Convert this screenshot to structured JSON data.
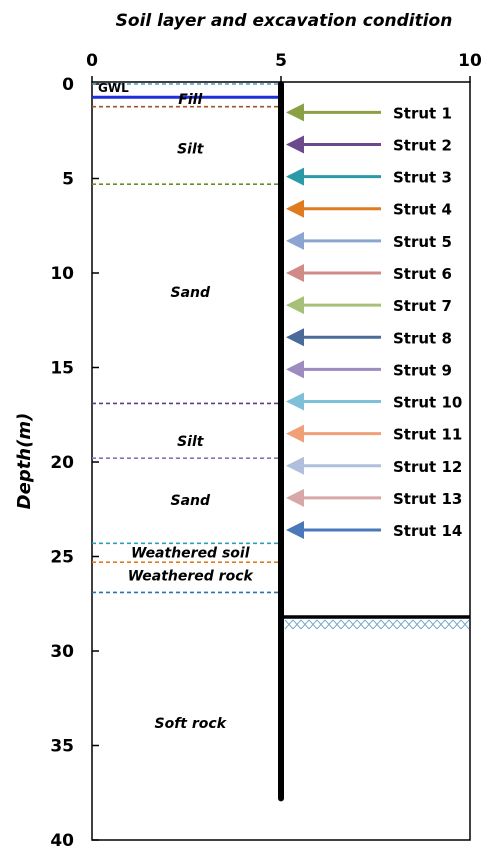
{
  "title": "Soil layer and excavation condition",
  "y_axis_label": "Depth(m)",
  "x_ticks": [
    "0",
    "5",
    "10"
  ],
  "y_ticks": [
    "0",
    "5",
    "10",
    "15",
    "20",
    "25",
    "30",
    "35",
    "40"
  ],
  "x_range": [
    0,
    10
  ],
  "depth_range": [
    0,
    40
  ],
  "gwl": {
    "label": "GWL",
    "depth": 0.7,
    "color": "#1f2fd6"
  },
  "wall": {
    "x": 5,
    "bottom_depth": 37.8
  },
  "excavation_bottom": {
    "depth": 28.2,
    "x_from": 5,
    "x_to": 10
  },
  "layers": [
    {
      "label": "Fill",
      "label_depth": 0.8,
      "label_x": 2.6
    },
    {
      "label": "Silt",
      "label_depth": 3.4,
      "label_x": 2.6
    },
    {
      "label": "Sand",
      "label_depth": 11.0,
      "label_x": 2.6
    },
    {
      "label": "Silt",
      "label_depth": 18.9,
      "label_x": 2.6
    },
    {
      "label": "Sand",
      "label_depth": 22.0,
      "label_x": 2.6
    },
    {
      "label": "Weathered soil",
      "label_depth": 24.8,
      "label_x": 2.6
    },
    {
      "label": "Weathered rock",
      "label_depth": 26.0,
      "label_x": 2.6
    },
    {
      "label": "Soft rock",
      "label_depth": 33.8,
      "label_x": 2.6
    }
  ],
  "boundaries": [
    {
      "depth": 0.0,
      "color": "#4aa0c8"
    },
    {
      "depth": 1.2,
      "color": "#a0522d"
    },
    {
      "depth": 5.3,
      "color": "#6b8e23"
    },
    {
      "depth": 16.9,
      "color": "#5a3d8a"
    },
    {
      "depth": 19.8,
      "color": "#8f6fb8"
    },
    {
      "depth": 24.3,
      "color": "#2c9fc0"
    },
    {
      "depth": 25.3,
      "color": "#e07b20"
    },
    {
      "depth": 26.9,
      "color": "#2a72a8"
    }
  ],
  "struts": [
    {
      "label": "Strut 1",
      "depth": 1.5,
      "color": "#8aa044"
    },
    {
      "label": "Strut 2",
      "depth": 3.2,
      "color": "#6b4a8c"
    },
    {
      "label": "Strut 3",
      "depth": 4.9,
      "color": "#2b9aa8"
    },
    {
      "label": "Strut 4",
      "depth": 6.6,
      "color": "#e07b20"
    },
    {
      "label": "Strut 5",
      "depth": 8.3,
      "color": "#8aa6d0"
    },
    {
      "label": "Strut 6",
      "depth": 10.0,
      "color": "#d08a88"
    },
    {
      "label": "Strut 7",
      "depth": 11.7,
      "color": "#a6c07a"
    },
    {
      "label": "Strut 8",
      "depth": 13.4,
      "color": "#4a6a9a"
    },
    {
      "label": "Strut 9",
      "depth": 15.1,
      "color": "#9c8cc0"
    },
    {
      "label": "Strut 10",
      "depth": 16.8,
      "color": "#7ec0d8"
    },
    {
      "label": "Strut 11",
      "depth": 18.5,
      "color": "#f0a078"
    },
    {
      "label": "Strut 12",
      "depth": 20.2,
      "color": "#b0c0dc"
    },
    {
      "label": "Strut 13",
      "depth": 21.9,
      "color": "#d8a8a8"
    },
    {
      "label": "Strut 14",
      "depth": 23.6,
      "color": "#4a78b8"
    }
  ]
}
